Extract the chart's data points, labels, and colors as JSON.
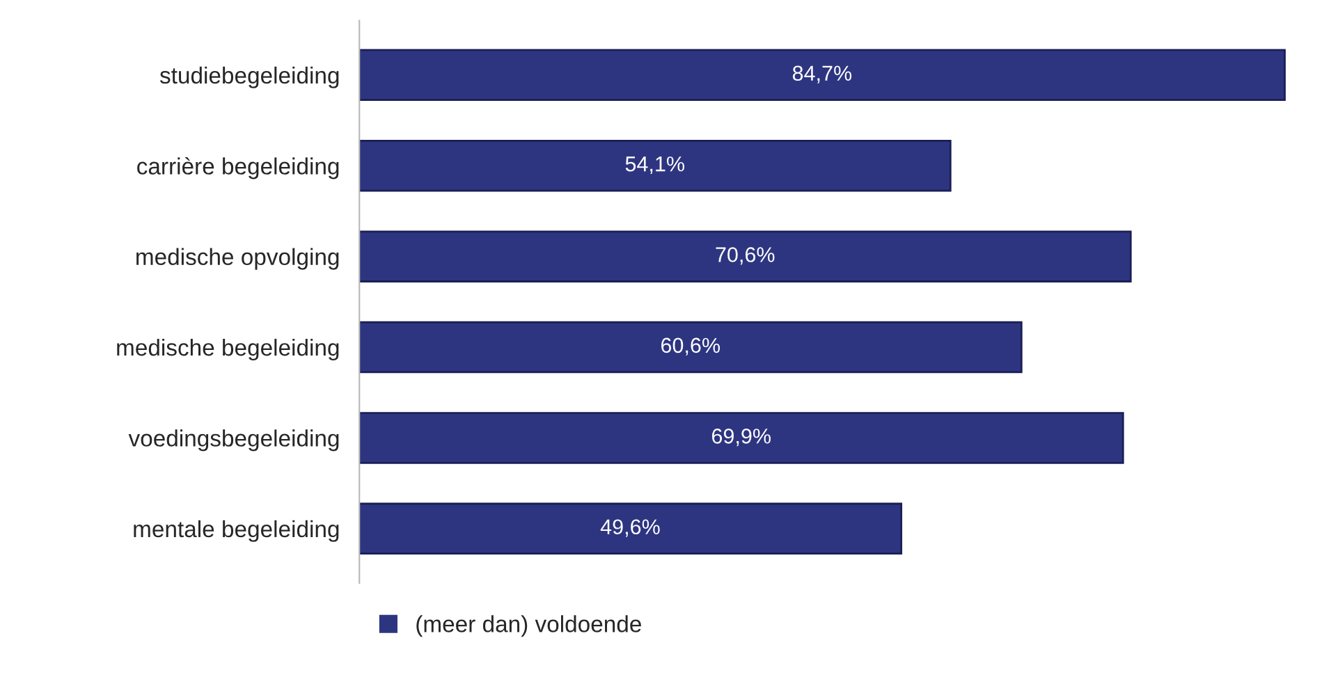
{
  "chart_data": {
    "type": "bar",
    "orientation": "horizontal",
    "categories": [
      "studiebegeleiding",
      "carrière begeleiding",
      "medische opvolging",
      "medische begeleiding",
      "voedingsbegeleiding",
      "mentale begeleiding"
    ],
    "series": [
      {
        "name": "(meer dan) voldoende",
        "color": "#2e3580",
        "values": [
          84.7,
          54.1,
          70.6,
          60.6,
          69.9,
          49.6
        ],
        "value_labels": [
          "84,7%",
          "54,1%",
          "70,6%",
          "60,6%",
          "69,9%",
          "49,6%"
        ]
      }
    ],
    "legend": "bottom left",
    "grid": false
  }
}
